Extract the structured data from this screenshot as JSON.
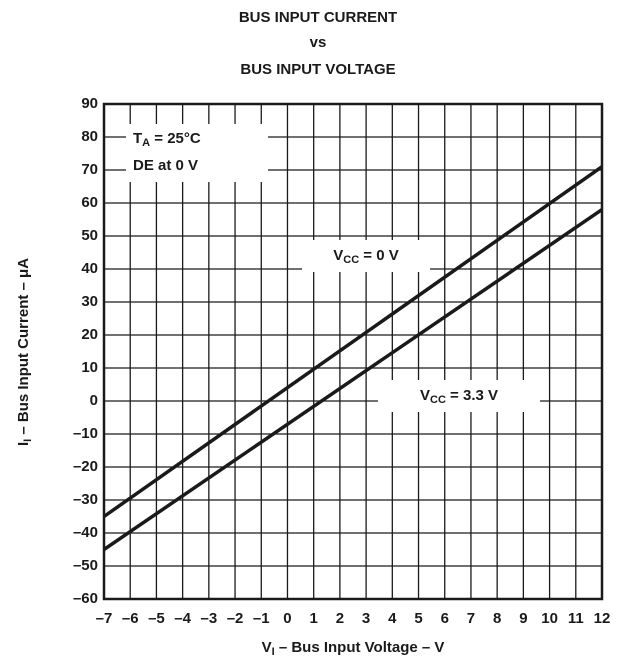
{
  "chart_data": {
    "type": "line",
    "title": [
      "BUS INPUT CURRENT",
      "vs",
      "BUS INPUT VOLTAGE"
    ],
    "x_label": {
      "main": "V",
      "sub": "I",
      "rest": " – Bus Input Voltage – V"
    },
    "y_label": {
      "main": "I",
      "sub": "I",
      "rest": " – Bus Input Current – μA"
    },
    "x": [
      -7,
      12
    ],
    "series": [
      {
        "label": {
          "main": "V",
          "sub": "CC",
          "rest": " = 0 V"
        },
        "color": "#1a1a1a",
        "values": [
          -35,
          71
        ]
      },
      {
        "label": {
          "main": "V",
          "sub": "CC",
          "rest": " = 3.3 V"
        },
        "color": "#1a1a1a",
        "values": [
          -45,
          58
        ]
      }
    ],
    "annotations": [
      {
        "main": "T",
        "sub": "A",
        "rest": " = 25°C"
      },
      {
        "main": "DE at 0 V"
      }
    ],
    "xlim": [
      -7,
      12
    ],
    "xticks": [
      {
        "value": -7,
        "label": "–7"
      },
      {
        "value": -6,
        "label": "–6"
      },
      {
        "value": -5,
        "label": "–5"
      },
      {
        "value": -4,
        "label": "–4"
      },
      {
        "value": -3,
        "label": "–3"
      },
      {
        "value": -2,
        "label": "–2"
      },
      {
        "value": -1,
        "label": "–1"
      },
      0,
      1,
      2,
      3,
      4,
      5,
      6,
      7,
      8,
      9,
      10,
      11,
      12
    ],
    "ylim": [
      -60,
      90
    ],
    "yticks": [
      {
        "value": -60,
        "label": "–60"
      },
      {
        "value": -50,
        "label": "–50"
      },
      {
        "value": -40,
        "label": "–40"
      },
      {
        "value": -30,
        "label": "–30"
      },
      {
        "value": -20,
        "label": "–20"
      },
      {
        "value": -10,
        "label": "–10"
      },
      0,
      10,
      20,
      30,
      40,
      50,
      60,
      70,
      80,
      90
    ],
    "grid": true
  }
}
